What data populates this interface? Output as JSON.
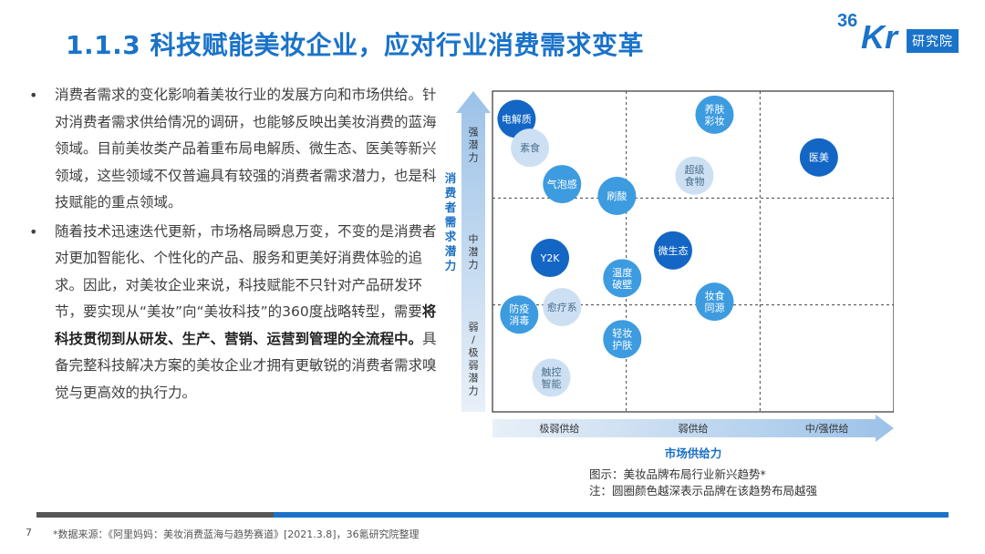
{
  "header": {
    "title": "1.1.3 科技赋能美妆企业，应对行业消费需求变革",
    "logo_number": "36",
    "logo_letters": "Kr",
    "logo_tag": "研究院"
  },
  "bullets": [
    {
      "text": "消费者需求的变化影响着美妆行业的发展方向和市场供给。针对消费者需求供给情况的调研，也能够反映出美妆消费的蓝海领域。目前美妆类产品着重布局电解质、微生态、医美等新兴领域，这些领域不仅普遍具有较强的消费者需求潜力，也是科技赋能的重点领域。"
    },
    {
      "text_pre": "随着技术迅速迭代更新，市场格局瞬息万变，不变的是消费者对更加智能化、个性化的产品、服务和更美好消费体验的追求。因此，对美妆企业来说，科技赋能不只针对产品研发环节，要实现从“美妆”向“美妆科技”的360度战略转型，需要",
      "text_bold": "将科技贯彻到从研发、生产、营销、运营到管理的全流程中。",
      "text_post": "具备完整科技解决方案的美妆企业才拥有更敏锐的消费者需求嗅觉与更高效的执行力。"
    }
  ],
  "chart_data": {
    "type": "scatter",
    "xlabel": "市场供给力",
    "ylabel": "消费者需求潜力",
    "x_categories": [
      "极弱供给",
      "弱供给",
      "中/强供给"
    ],
    "y_categories": [
      "弱/极弱潜力",
      "中潜力",
      "强潜力"
    ],
    "xlim": [
      0,
      3
    ],
    "ylim": [
      0,
      3
    ],
    "grid": true,
    "legend": "none",
    "colors": {
      "dark": "#1366c4",
      "medium": "#3d9be0",
      "light": "#cde0f3",
      "light_text": "#4a6d8c"
    },
    "points": [
      {
        "label": "电解质",
        "x": 0.18,
        "y": 2.74,
        "shade": "dark"
      },
      {
        "label": "素食",
        "x": 0.28,
        "y": 2.47,
        "shade": "light"
      },
      {
        "label": "气泡感",
        "x": 0.52,
        "y": 2.13,
        "shade": "medium"
      },
      {
        "label": "刷酸",
        "x": 0.93,
        "y": 2.02,
        "shade": "medium"
      },
      {
        "label": "养肤\n彩妆",
        "x": 1.66,
        "y": 2.78,
        "shade": "medium"
      },
      {
        "label": "超级\n食物",
        "x": 1.51,
        "y": 2.21,
        "shade": "light"
      },
      {
        "label": "医美",
        "x": 2.44,
        "y": 2.38,
        "shade": "dark"
      },
      {
        "label": "Y2K",
        "x": 0.43,
        "y": 1.44,
        "shade": "dark"
      },
      {
        "label": "微生态",
        "x": 1.35,
        "y": 1.51,
        "shade": "dark"
      },
      {
        "label": "温度\n破壁",
        "x": 0.97,
        "y": 1.25,
        "shade": "medium"
      },
      {
        "label": "妆食\n同源",
        "x": 1.66,
        "y": 1.03,
        "shade": "medium"
      },
      {
        "label": "防疫\n消毒",
        "x": 0.2,
        "y": 0.91,
        "shade": "medium"
      },
      {
        "label": "愈疗系",
        "x": 0.52,
        "y": 0.98,
        "shade": "light"
      },
      {
        "label": "轻妆\n护肤",
        "x": 0.97,
        "y": 0.68,
        "shade": "medium"
      },
      {
        "label": "触控\n智能",
        "x": 0.44,
        "y": 0.32,
        "shade": "light"
      }
    ]
  },
  "caption": {
    "line1": "图示：美妆品牌布局行业新兴趋势*",
    "line2": "注：圆圈颜色越深表示品牌在该趋势布局越强"
  },
  "footer": {
    "page": "7",
    "source": "*数据来源：《阿里妈妈：美妆消费蓝海与趋势赛道》[2021.3.8]，36氪研究院整理"
  }
}
